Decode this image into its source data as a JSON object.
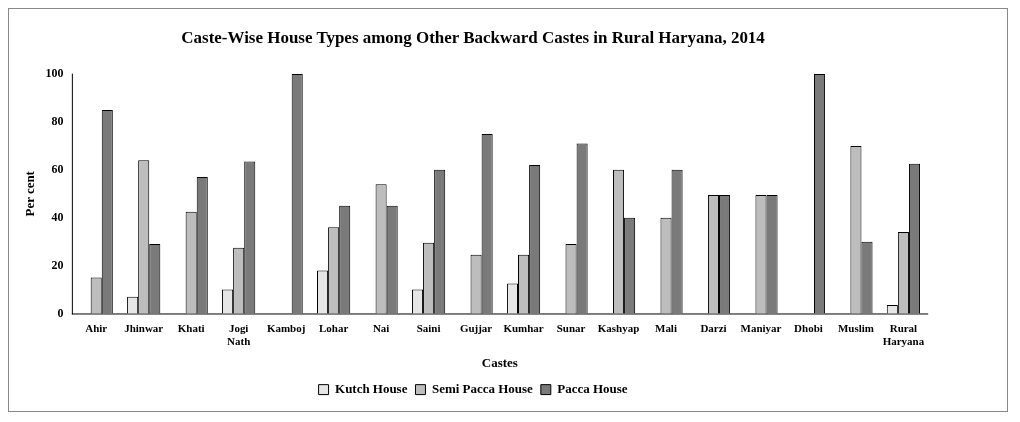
{
  "chart_data": {
    "type": "bar",
    "title": "Caste-Wise House Types among Other Backward Castes in Rural Haryana, 2014",
    "xlabel": "Castes",
    "ylabel": "Per cent",
    "categories": [
      "Ahir",
      "Jhinwar",
      "Khati",
      "Jogi Nath",
      "Kamboj",
      "Lohar",
      "Nai",
      "Saini",
      "Gujjar",
      "Kumhar",
      "Sunar",
      "Kashyap",
      "Mali",
      "Darzi",
      "Maniyar",
      "Dhobi",
      "Muslim",
      "Rural Haryana"
    ],
    "series": [
      {
        "name": "Kutch House",
        "color": "#e6e6e6",
        "values": [
          0,
          7,
          0,
          10,
          0,
          18,
          0,
          10,
          0,
          12.5,
          0,
          0,
          0,
          0,
          0,
          0,
          0,
          3.5
        ]
      },
      {
        "name": "Semi Pacca House",
        "color": "#bdbdbd",
        "values": [
          15,
          64,
          42.5,
          27.5,
          0,
          36,
          54,
          29.5,
          24.5,
          24.5,
          29,
          60,
          40,
          49.5,
          49.5,
          0,
          70,
          34
        ]
      },
      {
        "name": "Pacca House",
        "color": "#7a7a7a",
        "values": [
          85,
          29,
          57,
          63.5,
          100,
          45,
          45,
          60,
          75,
          62,
          71,
          40,
          60,
          49.5,
          49.5,
          100,
          30,
          62.5
        ]
      }
    ],
    "ylim": [
      0,
      100
    ],
    "yticks": [
      0,
      20,
      40,
      60,
      80,
      100
    ],
    "grid": false,
    "legend": "bottom"
  }
}
